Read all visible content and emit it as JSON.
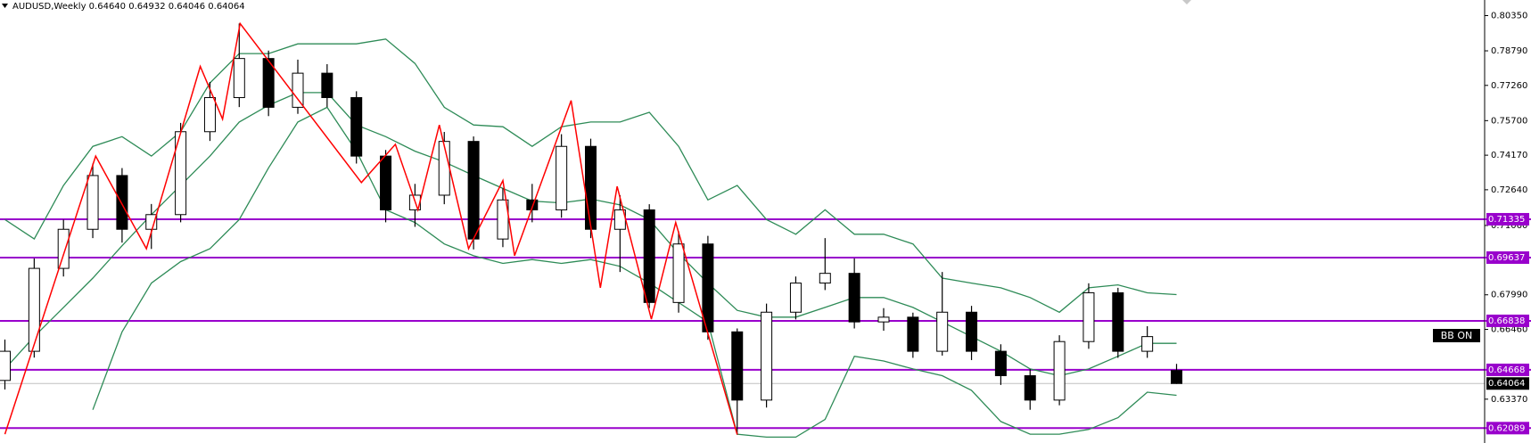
{
  "chart_data": {
    "type": "candlestick",
    "title": "AUDUSD,Weekly  0.64640 0.64932 0.64046 0.64064",
    "open": [
      0.642,
      0.6549,
      0.6916,
      0.7089,
      0.7327,
      0.7089,
      0.7154,
      0.7521,
      0.7672,
      0.7845,
      0.7629,
      0.778,
      0.7672,
      0.7413,
      0.7175,
      0.724,
      0.7478,
      0.7046,
      0.7219,
      0.7175,
      0.7456,
      0.7089,
      0.7175,
      0.6765,
      0.7024,
      0.6635,
      0.6333,
      0.6722,
      0.6851,
      0.6894,
      0.6679,
      0.67,
      0.6549,
      0.6722,
      0.6549,
      0.6441,
      0.6333,
      0.6592,
      0.6808,
      0.6549,
      0.6464
    ],
    "high": [
      0.6601,
      0.696,
      0.7132,
      0.738,
      0.736,
      0.7201,
      0.756,
      0.7741,
      0.8,
      0.788,
      0.784,
      0.782,
      0.77,
      0.744,
      0.729,
      0.752,
      0.75,
      0.727,
      0.729,
      0.751,
      0.749,
      0.724,
      0.72,
      0.708,
      0.706,
      0.665,
      0.676,
      0.688,
      0.705,
      0.696,
      0.674,
      0.672,
      0.69,
      0.675,
      0.658,
      0.647,
      0.662,
      0.685,
      0.683,
      0.666,
      0.64932
    ],
    "low": [
      0.638,
      0.6521,
      0.688,
      0.705,
      0.703,
      0.7002,
      0.712,
      0.748,
      0.763,
      0.759,
      0.76,
      0.763,
      0.738,
      0.712,
      0.71,
      0.72,
      0.7,
      0.701,
      0.712,
      0.714,
      0.705,
      0.69,
      0.674,
      0.672,
      0.66,
      0.618,
      0.63,
      0.669,
      0.682,
      0.665,
      0.664,
      0.652,
      0.653,
      0.651,
      0.64,
      0.629,
      0.631,
      0.656,
      0.652,
      0.652,
      0.64046
    ],
    "close": [
      0.6549,
      0.6916,
      0.7089,
      0.7327,
      0.7089,
      0.7154,
      0.7521,
      0.7672,
      0.7845,
      0.7629,
      0.778,
      0.7672,
      0.7413,
      0.7175,
      0.724,
      0.7478,
      0.7046,
      0.7219,
      0.7175,
      0.7456,
      0.7089,
      0.7175,
      0.6765,
      0.7024,
      0.6635,
      0.6333,
      0.6722,
      0.6851,
      0.6894,
      0.6679,
      0.67,
      0.6549,
      0.6722,
      0.6549,
      0.6441,
      0.6333,
      0.6592,
      0.6808,
      0.6549,
      0.6614,
      0.64064
    ],
    "up_color": "#ffffff",
    "down_color": "#000000",
    "wick_color": "#000000",
    "ylim": [
      0.6143,
      0.8104
    ],
    "yticks": [
      {
        "value": 0.8035,
        "label": "0.80350"
      },
      {
        "value": 0.7879,
        "label": "0.78790"
      },
      {
        "value": 0.7726,
        "label": "0.77260"
      },
      {
        "value": 0.757,
        "label": "0.75700"
      },
      {
        "value": 0.7417,
        "label": "0.74170"
      },
      {
        "value": 0.7264,
        "label": "0.72640"
      },
      {
        "value": 0.7106,
        "label": "0.71060"
      },
      {
        "value": 0.6799,
        "label": "0.67990"
      },
      {
        "value": 0.6646,
        "label": "0.66460"
      },
      {
        "value": 0.6337,
        "label": "0.63370"
      }
    ],
    "bollinger": {
      "color": "#2e8b57",
      "upper": [
        0.7132,
        0.7046,
        0.7283,
        0.7456,
        0.7499,
        0.7413,
        0.7521,
        0.7737,
        0.7867,
        0.7867,
        0.791,
        0.791,
        0.791,
        0.7931,
        0.7823,
        0.7629,
        0.7551,
        0.7543,
        0.7456,
        0.7543,
        0.7564,
        0.7564,
        0.7607,
        0.7456,
        0.7219,
        0.7283,
        0.7132,
        0.7067,
        0.7175,
        0.7067,
        0.7067,
        0.7024,
        0.6873,
        0.6851,
        0.683,
        0.6787,
        0.6722,
        0.683,
        0.6843,
        0.6808,
        0.68
      ],
      "middle": [
        0.6471,
        0.6614,
        0.6743,
        0.6873,
        0.7016,
        0.7154,
        0.7283,
        0.7413,
        0.7564,
        0.7638,
        0.7694,
        0.7694,
        0.7551,
        0.7499,
        0.7435,
        0.7387,
        0.7327,
        0.727,
        0.7214,
        0.7206,
        0.7223,
        0.7197,
        0.7132,
        0.6981,
        0.6851,
        0.673,
        0.67,
        0.67,
        0.6743,
        0.6787,
        0.6787,
        0.6743,
        0.6679,
        0.6614,
        0.6549,
        0.6471,
        0.6441,
        0.6471,
        0.6527,
        0.6584,
        0.6584
      ],
      "lower": [
        null,
        null,
        null,
        0.629,
        0.6635,
        0.6851,
        0.6946,
        0.7003,
        0.7132,
        0.7361,
        0.7564,
        0.7629,
        0.7435,
        0.7175,
        0.7119,
        0.7024,
        0.6972,
        0.6938,
        0.6955,
        0.6938,
        0.6955,
        0.6925,
        0.6851,
        0.6765,
        0.6679,
        0.6182,
        0.6169,
        0.6169,
        0.6247,
        0.6527,
        0.6506,
        0.6471,
        0.6441,
        0.6376,
        0.6238,
        0.6182,
        0.6182,
        0.6203,
        0.6255,
        0.6368,
        0.6354
      ]
    },
    "zigzag": {
      "color": "#ff0000",
      "x": [
        0,
        3.1,
        4.83,
        6.67,
        7.43,
        8.03,
        12.17,
        13.33,
        14.1,
        14.83,
        15.83,
        17,
        17.4,
        19.33,
        20.33,
        20.9,
        22.07,
        22.9,
        25
      ],
      "values": [
        0.6182,
        0.7413,
        0.7003,
        0.781,
        0.7577,
        0.8,
        0.7296,
        0.7465,
        0.7175,
        0.7551,
        0.7003,
        0.7305,
        0.6972,
        0.7659,
        0.683,
        0.7279,
        0.6691,
        0.7119,
        0.618
      ]
    },
    "levels": {
      "color": "#9900cc",
      "values": [
        0.71335,
        0.69637,
        0.66838,
        0.64668,
        0.62089
      ]
    },
    "last_price": 0.64064,
    "button": "BB ON"
  }
}
